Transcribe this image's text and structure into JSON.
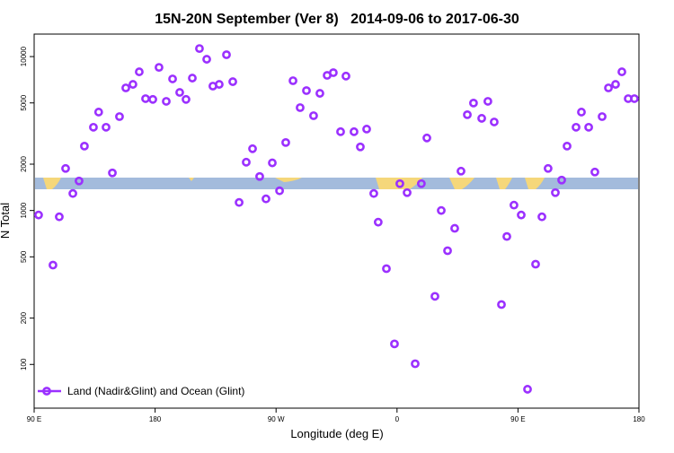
{
  "chart_data": {
    "type": "scatter",
    "title": "15N-20N September (Ver 8)   2014-09-06 to 2017-06-30",
    "x_label": "Longitude (deg E)",
    "y_label": "N Total",
    "log_y": true,
    "xlim": [
      90,
      540
    ],
    "xticks": [
      {
        "value": 90,
        "label": "90 E"
      },
      180,
      {
        "value": 270,
        "label": "90 W"
      },
      {
        "value": 360,
        "label": "0"
      },
      {
        "value": 450,
        "label": "90 E"
      },
      {
        "value": 540,
        "label": "180"
      }
    ],
    "ylim": [
      52,
      14000
    ],
    "yticks": [
      100,
      200,
      500,
      1000,
      2000,
      5000,
      10000
    ],
    "legend": "bottom-left",
    "series": [
      {
        "name": "Land (Nadir&Glint) and Ocean (Glint)",
        "color": "#9b30ff",
        "x": [
          93.3,
          104,
          108.7,
          113.4,
          118.8,
          123.4,
          127.4,
          134.1,
          138,
          143.5,
          148.2,
          153.5,
          158.2,
          163.5,
          168.2,
          172.9,
          178.3,
          182.9,
          188.3,
          193,
          198.3,
          203,
          207.7,
          213,
          218.4,
          223,
          227.7,
          233.1,
          237.8,
          242.5,
          247.8,
          252.5,
          257.8,
          262.5,
          267.2,
          272.6,
          277.2,
          282.6,
          287.9,
          292.6,
          297.9,
          302.6,
          308,
          312.6,
          318,
          322,
          328,
          332.7,
          337.4,
          342.7,
          346,
          352.1,
          358.1,
          362.1,
          367.5,
          373.5,
          378.1,
          382.2,
          388.2,
          392.9,
          397.6,
          402.9,
          407.6,
          412.3,
          416.9,
          423,
          427.6,
          432.3,
          437.7,
          441.7,
          447,
          452.4,
          457.1,
          463.1,
          467.8,
          472.4,
          477.8,
          482.5,
          486.5,
          493.2,
          497.2,
          502.6,
          507.2,
          512.6,
          517.3,
          522.6,
          527.3,
          532,
          536.6
        ],
        "values": [
          935,
          442,
          910,
          1876,
          1290,
          1555,
          2620,
          3475,
          4360,
          3475,
          1755,
          4075,
          6260,
          6600,
          7960,
          5330,
          5270,
          8510,
          5120,
          7160,
          5850,
          5270,
          7250,
          11280,
          9610,
          6430,
          6600,
          10280,
          6870,
          1128,
          2060,
          2520,
          1663,
          1190,
          2040,
          1343,
          2765,
          6970,
          4660,
          6010,
          4130,
          5770,
          7550,
          7860,
          3250,
          7470,
          3250,
          2590,
          3380,
          1290,
          840,
          419,
          136,
          1494,
          1306,
          101,
          1494,
          2960,
          277,
          1000,
          548,
          766,
          1802,
          4190,
          4990,
          3970,
          5120,
          3760,
          245,
          678,
          1084,
          935,
          69,
          448,
          910,
          1876,
          1306,
          1577,
          2620,
          3475,
          4360,
          3475,
          1778,
          4075,
          6260,
          6600,
          7960,
          5330,
          5330
        ]
      }
    ]
  }
}
